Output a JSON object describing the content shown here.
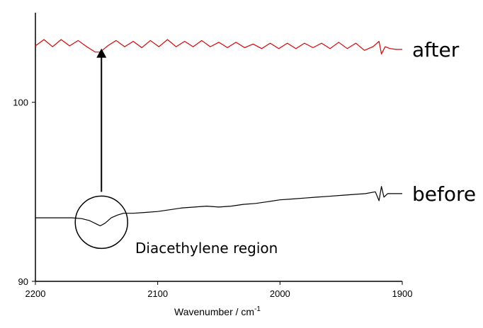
{
  "chart_data": {
    "type": "line",
    "xlabel": "Wavenumber / cm",
    "xlabel_superscript": "-1",
    "xlim": [
      2200,
      1900
    ],
    "ylim": [
      90,
      105
    ],
    "x_reversed": true,
    "grid": false,
    "x_ticks": [
      2200,
      2100,
      2000,
      1900
    ],
    "y_ticks": [
      90,
      100
    ],
    "series": [
      {
        "name": "after",
        "color": "#e00000",
        "x": [
          2200,
          2193,
          2186,
          2179,
          2172,
          2165,
          2158,
          2151,
          2147,
          2141,
          2134,
          2127,
          2120,
          2113,
          2106,
          2099,
          2092,
          2085,
          2078,
          2071,
          2064,
          2057,
          2050,
          2043,
          2036,
          2029,
          2022,
          2015,
          2008,
          2001,
          1994,
          1987,
          1980,
          1973,
          1966,
          1959,
          1952,
          1945,
          1938,
          1931,
          1924,
          1919,
          1917,
          1914,
          1910,
          1905,
          1900
        ],
        "values": [
          103.15,
          103.5,
          103.1,
          103.5,
          103.15,
          103.45,
          103.1,
          102.8,
          102.8,
          103.15,
          103.45,
          103.1,
          103.4,
          103.05,
          103.45,
          103.1,
          103.5,
          103.1,
          103.4,
          103.1,
          103.45,
          103.1,
          103.35,
          103.05,
          103.35,
          103.05,
          103.25,
          103.0,
          103.3,
          103.0,
          103.3,
          103.0,
          103.3,
          103.05,
          103.3,
          103.0,
          103.35,
          103.0,
          103.3,
          102.9,
          103.1,
          103.4,
          102.7,
          103.1,
          103.0,
          102.95,
          102.95
        ]
      },
      {
        "name": "before",
        "color": "#000000",
        "x": [
          2200,
          2185,
          2170,
          2162,
          2156,
          2150,
          2147,
          2143,
          2138,
          2133,
          2128,
          2120,
          2110,
          2100,
          2090,
          2080,
          2070,
          2060,
          2050,
          2040,
          2030,
          2020,
          2010,
          2000,
          1990,
          1980,
          1970,
          1960,
          1950,
          1940,
          1930,
          1922,
          1919,
          1917,
          1915,
          1912,
          1905,
          1900
        ],
        "values": [
          93.55,
          93.55,
          93.55,
          93.5,
          93.4,
          93.2,
          93.1,
          93.25,
          93.55,
          93.7,
          93.8,
          93.8,
          93.85,
          93.9,
          94.0,
          94.1,
          94.15,
          94.2,
          94.15,
          94.2,
          94.3,
          94.35,
          94.45,
          94.55,
          94.6,
          94.65,
          94.7,
          94.75,
          94.8,
          94.85,
          94.9,
          95.0,
          94.5,
          95.3,
          94.7,
          94.9,
          94.9,
          94.9
        ]
      }
    ],
    "annotations": {
      "region_label": "Diacethylene region",
      "region_center": [
        2146,
        93.3
      ],
      "arrow_from": [
        2146,
        95.0
      ],
      "arrow_to": [
        2146,
        103.0
      ]
    }
  }
}
